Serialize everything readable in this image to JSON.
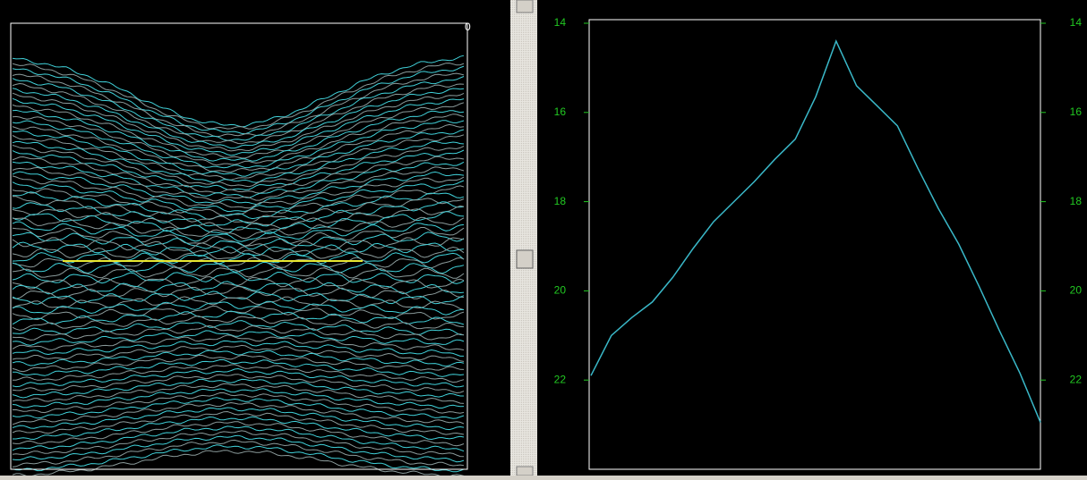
{
  "chart_data": {
    "type": "line",
    "values": [
      21.9,
      21.0,
      20.6,
      20.25,
      19.7,
      19.05,
      18.45,
      18.0,
      17.55,
      17.05,
      16.6,
      15.65,
      14.4,
      15.4,
      15.85,
      16.3,
      17.25,
      18.15,
      18.95,
      19.9,
      20.9,
      21.85,
      22.95
    ],
    "color": "#3ab8c8",
    "ylim": [
      24,
      13.92
    ],
    "yticks": [
      14,
      16,
      18,
      20,
      22
    ],
    "tick_color": "#22c922"
  },
  "left_panel": {
    "corner_label": "0"
  }
}
